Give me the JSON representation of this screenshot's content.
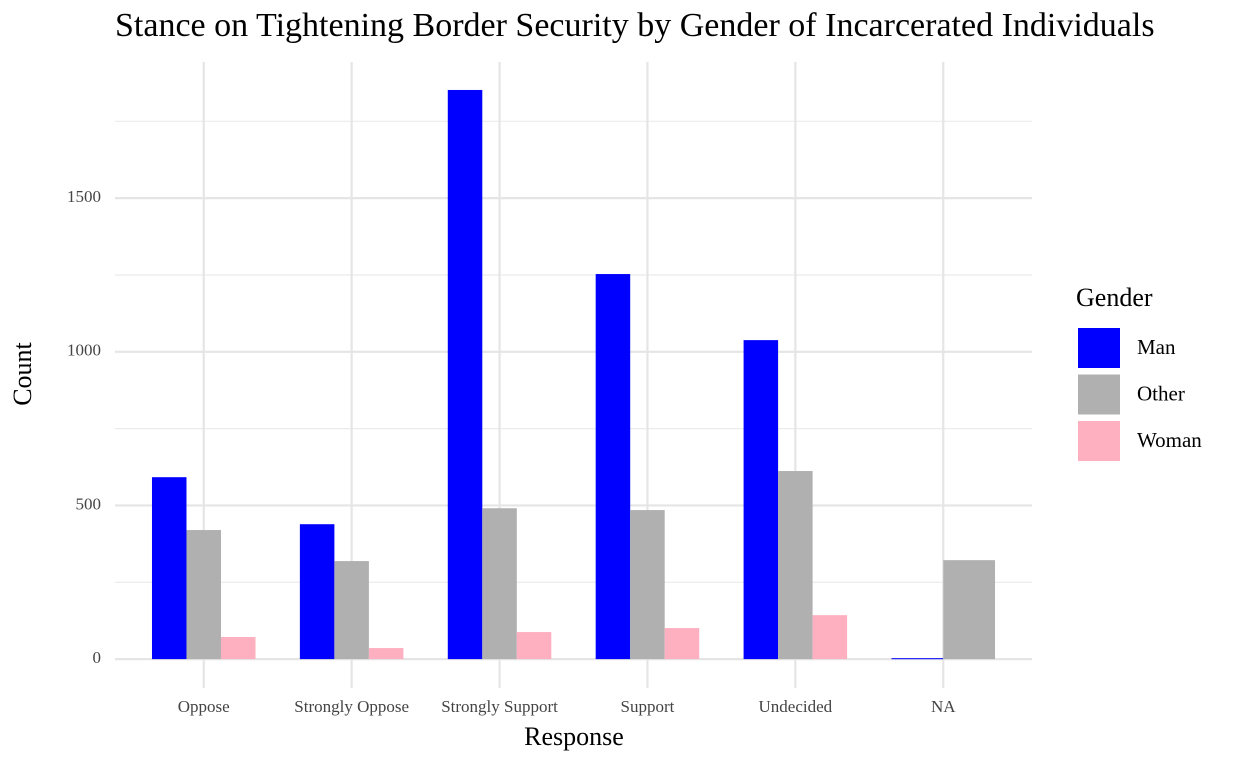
{
  "chart_data": {
    "type": "bar",
    "title": "Stance on Tightening Border Security by Gender of Incarcerated Individuals",
    "x_label": "Response",
    "y_label": "Count",
    "categories": [
      "Oppose",
      "Strongly Oppose",
      "Strongly Support",
      "Support",
      "Undecided",
      "NA"
    ],
    "legend_title": "Gender",
    "series": [
      {
        "name": "Man",
        "color": "#0000ff",
        "values": [
          592,
          439,
          1852,
          1253,
          1038,
          3
        ]
      },
      {
        "name": "Other",
        "color": "#b0b0b0",
        "values": [
          420,
          319,
          491,
          485,
          612,
          322
        ]
      },
      {
        "name": "Woman",
        "color": "#ffb0c0",
        "values": [
          72,
          36,
          88,
          101,
          143,
          null
        ]
      }
    ],
    "ylim": [
      -94,
      1943
    ],
    "yticks": [
      0,
      500,
      1000,
      1500
    ],
    "yminor_ticks": [
      250,
      750,
      1250,
      1750
    ],
    "grid": true,
    "legend": "right"
  }
}
